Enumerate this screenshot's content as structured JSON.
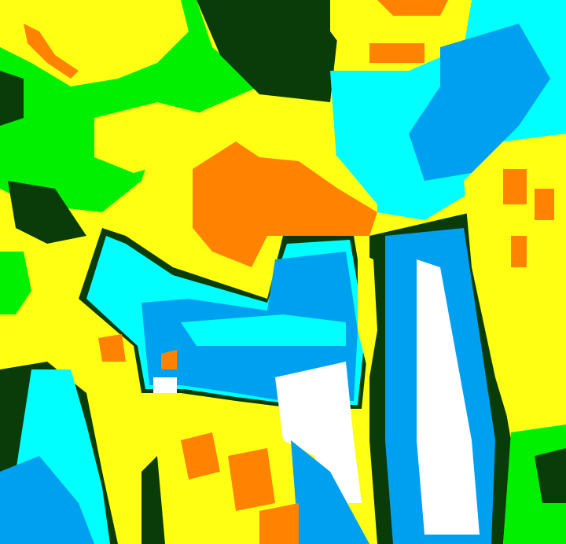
{
  "map": {
    "colors": {
      "yellow": "#ffff14",
      "green": "#00f000",
      "dark_green": "#0a3c0a",
      "orange": "#ff8200",
      "cyan": "#00ffff",
      "light_blue": "#00a0f0",
      "white": "#ffffff"
    }
  }
}
